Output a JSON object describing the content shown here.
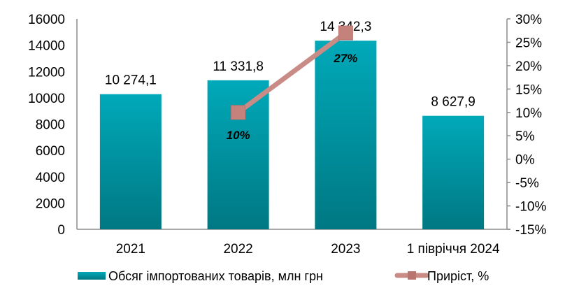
{
  "chart_data": {
    "type": "bar+line",
    "categories": [
      "2021",
      "2022",
      "2023",
      "1 півріччя 2024"
    ],
    "series": [
      {
        "name": "Обсяг імпортованих товарів, млн грн",
        "type": "bar",
        "axis": "left",
        "values": [
          10274.1,
          11331.8,
          14342.3,
          8627.9
        ],
        "labels": [
          "10 274,1",
          "11 331,8",
          "14 342,3",
          "8 627,9"
        ],
        "color": "#00a3b3"
      },
      {
        "name": "Приріст, %",
        "type": "line",
        "axis": "right",
        "values": [
          null,
          10,
          27,
          null
        ],
        "labels": [
          "",
          "10%",
          "27%",
          ""
        ],
        "color": "#c98b86"
      }
    ],
    "y_left": {
      "ylim": [
        0,
        16000
      ],
      "ticks": [
        "0",
        "2000",
        "4000",
        "6000",
        "8000",
        "10000",
        "12000",
        "14000",
        "16000"
      ]
    },
    "y_right": {
      "ylim": [
        -15,
        30
      ],
      "ticks": [
        "-15%",
        "-10%",
        "-5%",
        "0%",
        "5%",
        "10%",
        "15%",
        "20%",
        "25%",
        "30%"
      ]
    },
    "grid": false,
    "legend": "bottom"
  }
}
